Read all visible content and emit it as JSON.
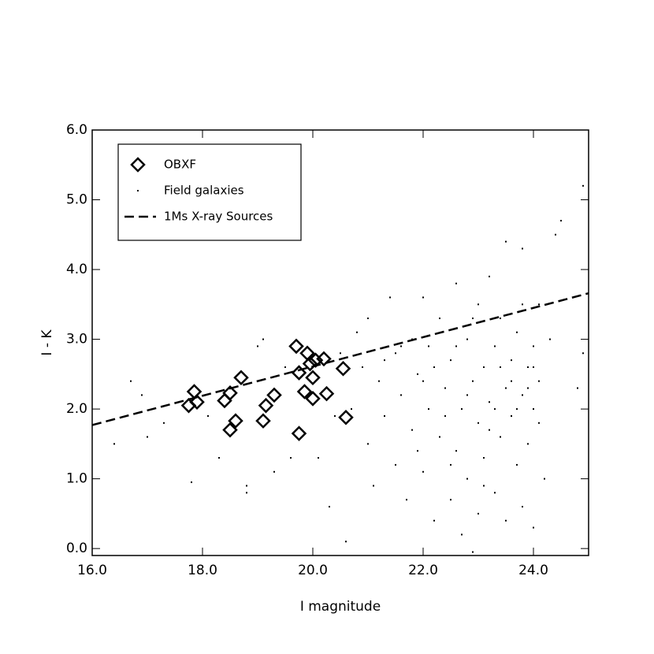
{
  "chart_data": {
    "type": "scatter",
    "x_label": "I magnitude",
    "y_label": "I - K",
    "xlim": [
      16,
      25
    ],
    "ylim": [
      -0.1,
      6.0
    ],
    "xticks": [
      {
        "value": 16,
        "label": "16.0"
      },
      {
        "value": 18,
        "label": "18.0"
      },
      {
        "value": 20,
        "label": "20.0"
      },
      {
        "value": 22,
        "label": "22.0"
      },
      {
        "value": 24,
        "label": "24.0"
      }
    ],
    "yticks": [
      {
        "value": 0,
        "label": "0.0"
      },
      {
        "value": 1,
        "label": "1.0"
      },
      {
        "value": 2,
        "label": "2.0"
      },
      {
        "value": 3,
        "label": "3.0"
      },
      {
        "value": 4,
        "label": "4.0"
      },
      {
        "value": 5,
        "label": "5.0"
      },
      {
        "value": 6,
        "label": "6.0"
      }
    ],
    "legend": "upper left",
    "series": [
      {
        "name": "OBXF",
        "color": "#000000",
        "marker": "diamond",
        "x": [
          17.75,
          17.85,
          17.9,
          18.4,
          18.5,
          18.5,
          18.6,
          18.7,
          19.1,
          19.15,
          19.3,
          19.75,
          19.7,
          19.75,
          19.85,
          19.9,
          19.95,
          20.0,
          20.0,
          20.05,
          20.2,
          20.25,
          20.55,
          20.6
        ],
        "values": [
          2.05,
          2.25,
          2.1,
          2.12,
          2.23,
          1.7,
          1.83,
          2.45,
          1.83,
          2.05,
          2.2,
          1.65,
          2.9,
          2.52,
          2.25,
          2.8,
          2.65,
          2.15,
          2.45,
          2.7,
          2.72,
          2.22,
          2.58,
          1.88
        ]
      },
      {
        "name": "Field galaxies",
        "color": "#000000",
        "marker": "dot",
        "x": [
          16.4,
          16.7,
          16.9,
          17.0,
          17.3,
          17.8,
          18.3,
          18.8,
          18.8,
          19.0,
          19.1,
          19.3,
          19.6,
          20.1,
          20.3,
          20.6,
          20.7,
          20.8,
          20.9,
          21.0,
          21.0,
          21.1,
          21.2,
          21.3,
          21.4,
          21.5,
          21.5,
          21.6,
          21.7,
          21.8,
          21.8,
          21.9,
          22.0,
          22.0,
          22.1,
          22.1,
          22.2,
          22.3,
          22.3,
          22.4,
          22.5,
          22.5,
          22.6,
          22.6,
          22.7,
          22.7,
          22.8,
          22.8,
          22.9,
          22.9,
          23.0,
          23.0,
          23.0,
          23.1,
          23.1,
          23.2,
          23.2,
          23.3,
          23.3,
          23.4,
          23.4,
          23.5,
          23.5,
          23.5,
          23.6,
          23.6,
          23.7,
          23.7,
          23.8,
          23.8,
          23.8,
          23.9,
          23.9,
          24.0,
          24.0,
          24.0,
          24.1,
          24.1,
          24.2,
          24.3,
          24.4,
          24.5,
          24.8,
          24.9,
          24.9,
          22.2,
          22.4,
          21.9,
          23.3,
          23.6,
          23.9,
          24.0,
          23.2,
          22.8,
          22.0,
          21.6,
          22.6,
          23.4,
          23.7,
          24.1,
          22.9,
          23.1,
          21.3,
          23.8,
          22.5,
          20.5,
          20.4,
          19.5,
          18.1
        ],
        "values": [
          1.5,
          2.4,
          2.2,
          1.6,
          1.8,
          0.95,
          1.3,
          0.9,
          0.8,
          2.9,
          3.0,
          1.1,
          1.3,
          1.3,
          0.6,
          0.1,
          2.0,
          3.1,
          2.6,
          1.5,
          3.3,
          0.9,
          2.4,
          1.9,
          3.6,
          2.8,
          1.2,
          2.2,
          0.7,
          3.0,
          1.7,
          2.5,
          3.6,
          1.1,
          2.0,
          2.9,
          0.4,
          1.6,
          3.3,
          2.3,
          0.7,
          2.7,
          1.4,
          3.8,
          2.0,
          0.2,
          3.0,
          1.0,
          2.4,
          -0.05,
          1.8,
          3.5,
          0.5,
          2.6,
          1.3,
          3.9,
          2.1,
          0.8,
          2.9,
          1.6,
          3.3,
          2.3,
          0.4,
          4.4,
          1.9,
          2.7,
          1.2,
          3.1,
          2.2,
          4.3,
          0.6,
          2.6,
          1.5,
          2.9,
          2.0,
          0.3,
          3.5,
          2.4,
          1.0,
          3.0,
          4.5,
          4.7,
          2.3,
          5.2,
          2.8,
          2.6,
          1.9,
          1.4,
          2.0,
          2.4,
          2.3,
          2.6,
          1.7,
          2.2,
          2.4,
          2.9,
          2.9,
          2.6,
          2.0,
          1.8,
          3.3,
          0.9,
          2.7,
          3.5,
          1.2,
          2.8,
          1.9,
          2.6,
          1.9
        ]
      },
      {
        "name": "1Ms X-ray Sources",
        "color": "#000000",
        "marker": "line",
        "dash": true,
        "x": [
          16,
          25
        ],
        "values": [
          1.77,
          3.66
        ]
      }
    ]
  }
}
